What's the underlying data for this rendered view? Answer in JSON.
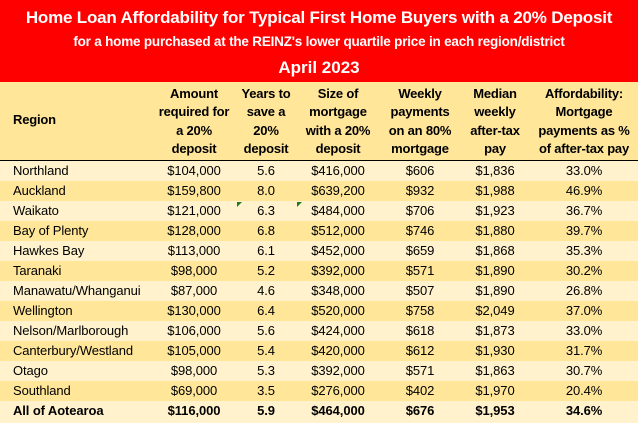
{
  "banner": {
    "title": "Home Loan Affordability for Typical First Home Buyers with a 20% Deposit",
    "subtitle": "for a home purchased at the REINZ's lower quartile price in each region/district",
    "date": "April 2023"
  },
  "colors": {
    "banner_bg": "#ff0000",
    "banner_text": "#ffffff",
    "header_bg": "#ffe699",
    "row_light": "#fff2cc",
    "row_dark": "#ffe699",
    "error_indicator": "#1e7c1e"
  },
  "table": {
    "headers": [
      "Region",
      "Amount required for a 20% deposit",
      "Years to save a 20% deposit",
      "Size of mortgage with a 20% deposit",
      "Weekly payments on an 80% mortgage",
      "Median weekly after-tax pay",
      "Affordability: Mortgage payments as % of after-tax pay"
    ],
    "header_lines": [
      [
        "Region"
      ],
      [
        "Amount",
        "required for",
        "a 20%",
        "deposit"
      ],
      [
        "Years to",
        "save a",
        "20%",
        "deposit"
      ],
      [
        "Size of",
        "mortgage",
        "with a 20%",
        "deposit"
      ],
      [
        "Weekly",
        "payments",
        "on an 80%",
        "mortgage"
      ],
      [
        "Median",
        "weekly",
        "after-tax",
        "pay"
      ],
      [
        "Affordability:",
        "Mortgage",
        "payments as %",
        "of after-tax pay"
      ]
    ],
    "rows": [
      [
        "Northland",
        "$104,000",
        "5.6",
        "$416,000",
        "$606",
        "$1,836",
        "33.0%"
      ],
      [
        "Auckland",
        "$159,800",
        "8.0",
        "$639,200",
        "$932",
        "$1,988",
        "46.9%"
      ],
      [
        "Waikato",
        "$121,000",
        "6.3",
        "$484,000",
        "$706",
        "$1,923",
        "36.7%"
      ],
      [
        "Bay of Plenty",
        "$128,000",
        "6.8",
        "$512,000",
        "$746",
        "$1,880",
        "39.7%"
      ],
      [
        "Hawkes Bay",
        "$113,000",
        "6.1",
        "$452,000",
        "$659",
        "$1,868",
        "35.3%"
      ],
      [
        "Taranaki",
        "$98,000",
        "5.2",
        "$392,000",
        "$571",
        "$1,890",
        "30.2%"
      ],
      [
        "Manawatu/Whanganui",
        "$87,000",
        "4.6",
        "$348,000",
        "$507",
        "$1,890",
        "26.8%"
      ],
      [
        "Wellington",
        "$130,000",
        "6.4",
        "$520,000",
        "$758",
        "$2,049",
        "37.0%"
      ],
      [
        "Nelson/Marlborough",
        "$106,000",
        "5.6",
        "$424,000",
        "$618",
        "$1,873",
        "33.0%"
      ],
      [
        "Canterbury/Westland",
        "$105,000",
        "5.4",
        "$420,000",
        "$612",
        "$1,930",
        "31.7%"
      ],
      [
        "Otago",
        "$98,000",
        "5.3",
        "$392,000",
        "$571",
        "$1,863",
        "30.7%"
      ],
      [
        "Southland",
        "$69,000",
        "3.5",
        "$276,000",
        "$402",
        "$1,970",
        "20.4%"
      ]
    ],
    "total": [
      "All of Aotearoa",
      "$116,000",
      "5.9",
      "$464,000",
      "$676",
      "$1,953",
      "34.6%"
    ]
  }
}
